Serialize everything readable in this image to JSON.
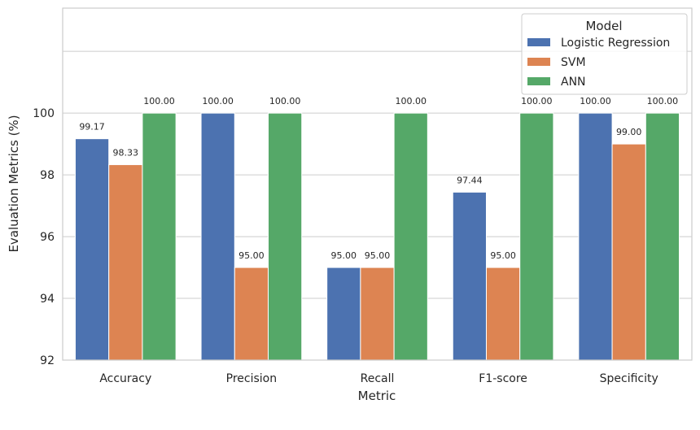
{
  "chart_data": {
    "type": "bar",
    "xlabel": "Metric",
    "ylabel": "Evaluation Metrics (%)",
    "categories": [
      "Accuracy",
      "Precision",
      "Recall",
      "F1-score",
      "Specificity"
    ],
    "series": [
      {
        "name": "Logistic Regression",
        "color": "#4c72b0",
        "values": [
          99.17,
          100.0,
          95.0,
          97.44,
          100.0
        ]
      },
      {
        "name": "SVM",
        "color": "#dd8452",
        "values": [
          98.33,
          95.0,
          95.0,
          95.0,
          99.0
        ]
      },
      {
        "name": "ANN",
        "color": "#55a868",
        "values": [
          100.0,
          100.0,
          100.0,
          100.0,
          100.0
        ]
      }
    ],
    "ylim": [
      92,
      103.4
    ],
    "yticks": [
      92,
      94,
      96,
      98,
      100
    ],
    "grid": true,
    "legend": {
      "title": "Model",
      "placement": "top-right"
    },
    "data_label_format": "2 decimals"
  }
}
